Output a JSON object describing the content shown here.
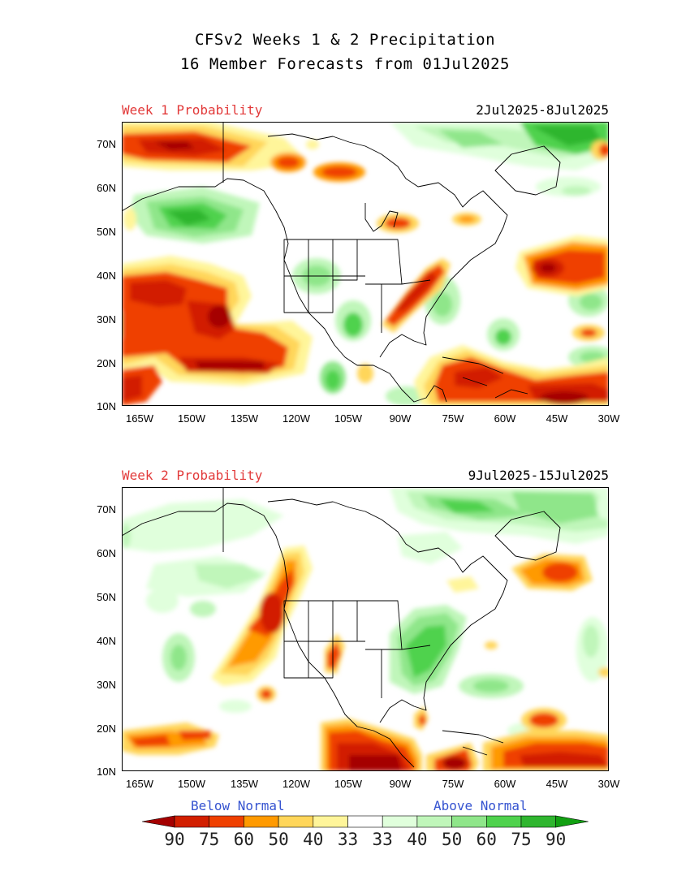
{
  "title": {
    "line1": "CFSv2 Weeks 1 & 2 Precipitation",
    "line2": "16 Member Forecasts from 01Jul2025"
  },
  "panels": [
    {
      "label": "Week 1 Probability",
      "dates": "2Jul2025-8Jul2025"
    },
    {
      "label": "Week 2 Probability",
      "dates": "9Jul2025-15Jul2025"
    }
  ],
  "axes": {
    "lat_labels": [
      "70N",
      "60N",
      "50N",
      "40N",
      "30N",
      "20N",
      "10N"
    ],
    "lon_labels": [
      "165W",
      "150W",
      "135W",
      "120W",
      "105W",
      "90W",
      "75W",
      "60W",
      "45W",
      "30W"
    ]
  },
  "legend": {
    "below_label": "Below Normal",
    "above_label": "Above Normal",
    "values": [
      "90",
      "75",
      "60",
      "50",
      "40",
      "33",
      "33",
      "40",
      "50",
      "60",
      "75",
      "90"
    ],
    "colors": [
      "#a50000",
      "#d21f00",
      "#ef4000",
      "#ff9a00",
      "#ffd65a",
      "#fff59a",
      "#ffffff",
      "#e0ffdc",
      "#c0f6ba",
      "#8fe68a",
      "#4fd24d",
      "#2fb62f",
      "#12a012"
    ]
  }
}
